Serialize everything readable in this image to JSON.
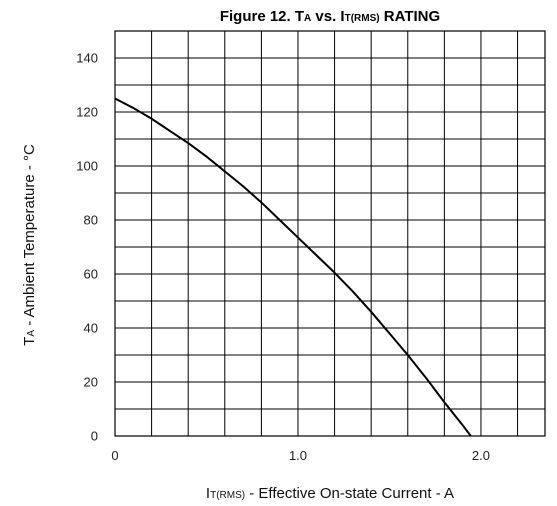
{
  "chart_data": {
    "type": "line",
    "title": {
      "prefix": "Figure 12.  T",
      "sub_a": "A",
      "middle": " vs. I",
      "sub_b": "T(RMS)",
      "suffix": " RATING"
    },
    "xlabel": {
      "main": "I",
      "sub": "T(RMS)",
      "rest": " - Effective On-state Current - A"
    },
    "ylabel": {
      "main": "T",
      "sub": "A",
      "rest": " - Ambient Temperature - °C"
    },
    "xlim": [
      0,
      2.35
    ],
    "ylim": [
      0,
      150
    ],
    "x_ticks": [
      {
        "value": 0,
        "label": "0"
      },
      {
        "value": 1.0,
        "label": "1.0"
      },
      {
        "value": 2.0,
        "label": "2.0"
      }
    ],
    "y_ticks": [
      {
        "value": 0,
        "label": "0"
      },
      {
        "value": 20,
        "label": "20"
      },
      {
        "value": 40,
        "label": "40"
      },
      {
        "value": 60,
        "label": "60"
      },
      {
        "value": 80,
        "label": "80"
      },
      {
        "value": 100,
        "label": "100"
      },
      {
        "value": 120,
        "label": "120"
      },
      {
        "value": 140,
        "label": "140"
      }
    ],
    "x_grid_step": 0.2,
    "y_grid_step": 10,
    "grid": true,
    "series": [
      {
        "color": "#000000",
        "x": [
          0,
          0.1,
          0.2,
          0.3,
          0.4,
          0.5,
          0.6,
          0.7,
          0.8,
          0.9,
          1.0,
          1.1,
          1.2,
          1.3,
          1.4,
          1.5,
          1.6,
          1.7,
          1.8,
          1.9,
          2.0,
          2.07
        ],
        "y": [
          125,
          121.5,
          117.5,
          113,
          108.5,
          103.5,
          98,
          92.5,
          86.5,
          80,
          73.5,
          67,
          60.5,
          53.5,
          46,
          38,
          30,
          21.5,
          12.5,
          4,
          -5,
          -12
        ]
      }
    ]
  }
}
